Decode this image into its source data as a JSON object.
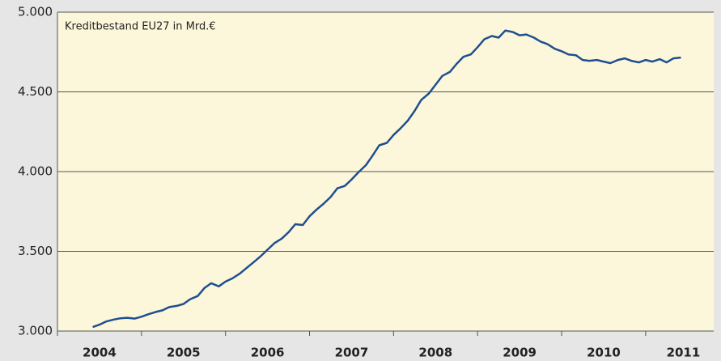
{
  "chart_data": {
    "type": "line",
    "title": "Kreditbestand EU27 in Mrd.€",
    "x": [
      2004.42,
      2004.5,
      2004.58,
      2004.67,
      2004.75,
      2004.83,
      2004.92,
      2005.0,
      2005.08,
      2005.17,
      2005.25,
      2005.33,
      2005.42,
      2005.5,
      2005.58,
      2005.67,
      2005.75,
      2005.83,
      2005.92,
      2006.0,
      2006.08,
      2006.17,
      2006.25,
      2006.33,
      2006.42,
      2006.5,
      2006.58,
      2006.67,
      2006.75,
      2006.83,
      2006.92,
      2007.0,
      2007.08,
      2007.17,
      2007.25,
      2007.33,
      2007.42,
      2007.5,
      2007.58,
      2007.67,
      2007.75,
      2007.83,
      2007.92,
      2008.0,
      2008.08,
      2008.17,
      2008.25,
      2008.33,
      2008.42,
      2008.5,
      2008.58,
      2008.67,
      2008.75,
      2008.83,
      2008.92,
      2009.0,
      2009.08,
      2009.17,
      2009.25,
      2009.33,
      2009.42,
      2009.5,
      2009.58,
      2009.67,
      2009.75,
      2009.83,
      2009.92,
      2010.0,
      2010.08,
      2010.17,
      2010.25,
      2010.33,
      2010.42,
      2010.5,
      2010.58,
      2010.67,
      2010.75,
      2010.83,
      2010.92,
      2011.0,
      2011.08,
      2011.17,
      2011.25,
      2011.33,
      2011.42
    ],
    "series": [
      {
        "color": "#1f4f8f",
        "values": [
          3025,
          3040,
          3060,
          3072,
          3080,
          3083,
          3078,
          3090,
          3105,
          3120,
          3130,
          3150,
          3158,
          3170,
          3200,
          3220,
          3270,
          3300,
          3280,
          3310,
          3330,
          3360,
          3395,
          3430,
          3470,
          3510,
          3550,
          3580,
          3620,
          3670,
          3665,
          3720,
          3760,
          3800,
          3840,
          3895,
          3910,
          3950,
          3995,
          4040,
          4100,
          4165,
          4180,
          4230,
          4270,
          4320,
          4380,
          4450,
          4490,
          4545,
          4600,
          4625,
          4675,
          4720,
          4735,
          4780,
          4830,
          4850,
          4840,
          4885,
          4875,
          4855,
          4860,
          4840,
          4815,
          4800,
          4770,
          4755,
          4735,
          4730,
          4700,
          4695,
          4700,
          4690,
          4680,
          4700,
          4710,
          4695,
          4685,
          4700,
          4690,
          4705,
          4685,
          4710,
          4715
        ]
      }
    ],
    "xlim": [
      2004,
      2011.81
    ],
    "xticks": [
      2004,
      2005,
      2006,
      2007,
      2008,
      2009,
      2010,
      2011
    ],
    "ylim": [
      3000,
      5000
    ],
    "yticks": [
      {
        "value": 3000,
        "label": "3.000"
      },
      {
        "value": 3500,
        "label": "3.500"
      },
      {
        "value": 4000,
        "label": "4.000"
      },
      {
        "value": 4500,
        "label": "4.500"
      },
      {
        "value": 5000,
        "label": "5.000"
      }
    ],
    "grid": true
  }
}
